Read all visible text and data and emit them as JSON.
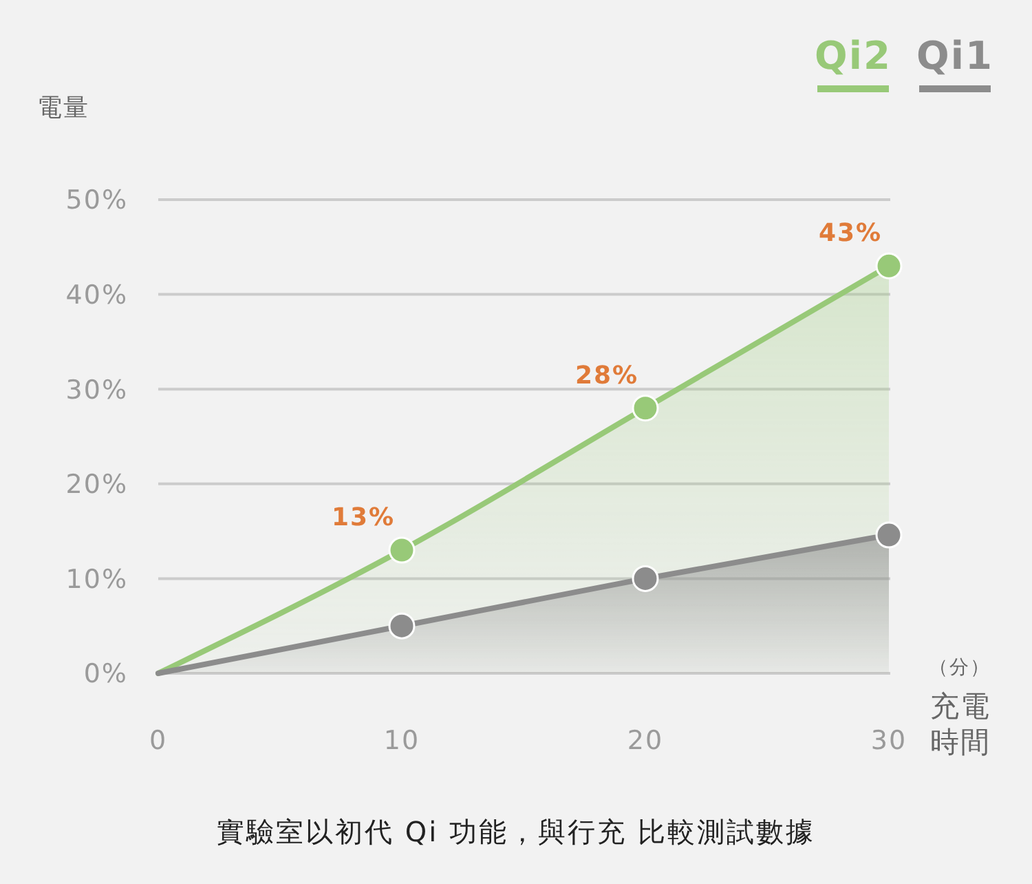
{
  "chart_data": {
    "type": "area",
    "x": [
      0,
      10,
      20,
      30
    ],
    "xlim": [
      0,
      30
    ],
    "xticks": [
      0,
      10,
      20,
      30
    ],
    "ylim": [
      0,
      50
    ],
    "yticks": [
      {
        "value": 0,
        "label": "0%"
      },
      {
        "value": 10,
        "label": "10%"
      },
      {
        "value": 20,
        "label": "20%"
      },
      {
        "value": 30,
        "label": "30%"
      },
      {
        "value": 40,
        "label": "40%"
      },
      {
        "value": 50,
        "label": "50%"
      }
    ],
    "ylabel": "電量",
    "xlabel": "（分）充電時間",
    "series": [
      {
        "name": "Qi2",
        "color": "#98c978",
        "values": [
          0,
          13,
          28,
          43
        ],
        "value_labels": [
          null,
          "13%",
          "28%",
          "43%"
        ]
      },
      {
        "name": "Qi1",
        "color": "#8c8c8c",
        "values": [
          0,
          5,
          10,
          14.6
        ]
      }
    ],
    "grid": "y",
    "legend": "top right",
    "marker": "circle",
    "line_style": "solid",
    "annotations": [
      "實驗室以初代 Qi 功能，與行充 比較測試數據"
    ]
  }
}
